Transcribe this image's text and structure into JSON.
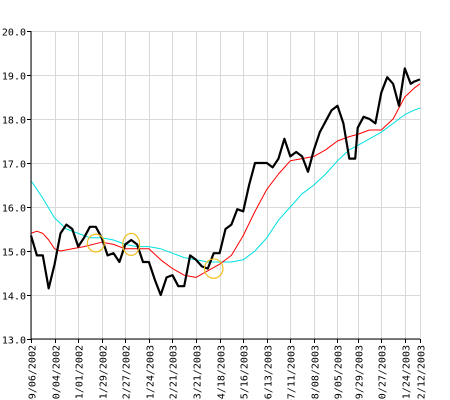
{
  "chart_data": {
    "type": "line",
    "title": "",
    "xlabel": "",
    "ylabel": "",
    "ylim": [
      13.0,
      20.0
    ],
    "grid": true,
    "y_ticks": [
      "13.0",
      "14.0",
      "15.0",
      "16.0",
      "17.0",
      "18.0",
      "19.0",
      "20.0"
    ],
    "x_ticks": [
      "09/06/2002",
      "10/04/2002",
      "11/01/2002",
      "11/29/2002",
      "12/27/2002",
      "01/24/2003",
      "02/21/2003",
      "03/21/2003",
      "04/18/2003",
      "05/16/2003",
      "06/13/2003",
      "07/11/2003",
      "08/08/2003",
      "09/05/2003",
      "09/29/2003",
      "10/27/2003",
      "11/24/2003",
      "12/12/2003"
    ],
    "series": [
      {
        "color": "#000000",
        "x": [
          "2002-09-06",
          "2002-09-13",
          "2002-09-20",
          "2002-09-27",
          "2002-10-04",
          "2002-10-11",
          "2002-10-18",
          "2002-10-25",
          "2002-11-01",
          "2002-11-08",
          "2002-11-15",
          "2002-11-22",
          "2002-11-29",
          "2002-12-06",
          "2002-12-13",
          "2002-12-20",
          "2002-12-27",
          "2003-01-03",
          "2003-01-10",
          "2003-01-17",
          "2003-01-24",
          "2003-01-31",
          "2003-02-07",
          "2003-02-14",
          "2003-02-21",
          "2003-02-28",
          "2003-03-07",
          "2003-03-14",
          "2003-03-21",
          "2003-03-28",
          "2003-04-04",
          "2003-04-11",
          "2003-04-18",
          "2003-04-25",
          "2003-05-02",
          "2003-05-09",
          "2003-05-16",
          "2003-05-23",
          "2003-05-30",
          "2003-06-06",
          "2003-06-13",
          "2003-06-20",
          "2003-06-27",
          "2003-07-04",
          "2003-07-11",
          "2003-07-18",
          "2003-07-25",
          "2003-08-01",
          "2003-08-08",
          "2003-08-15",
          "2003-08-22",
          "2003-08-29",
          "2003-09-05",
          "2003-09-12",
          "2003-09-19",
          "2003-09-26",
          "2003-09-29",
          "2003-10-06",
          "2003-10-13",
          "2003-10-20",
          "2003-10-27",
          "2003-11-03",
          "2003-11-10",
          "2003-11-17",
          "2003-11-24",
          "2003-12-01",
          "2003-12-05",
          "2003-12-12"
        ],
        "y": [
          15.35,
          14.9,
          14.9,
          14.15,
          14.7,
          15.4,
          15.6,
          15.5,
          15.1,
          15.3,
          15.55,
          15.55,
          15.3,
          14.9,
          14.95,
          14.75,
          15.15,
          15.25,
          15.15,
          14.75,
          14.75,
          14.35,
          14.0,
          14.4,
          14.45,
          14.2,
          14.2,
          14.9,
          14.8,
          14.65,
          14.6,
          14.95,
          14.95,
          15.5,
          15.6,
          15.95,
          15.9,
          16.5,
          17.0,
          17.0,
          17.0,
          16.9,
          17.1,
          17.55,
          17.15,
          17.25,
          17.15,
          16.8,
          17.3,
          17.7,
          17.95,
          18.2,
          18.3,
          17.9,
          17.1,
          17.1,
          17.8,
          18.05,
          18.0,
          17.9,
          18.6,
          18.95,
          18.8,
          18.3,
          19.15,
          18.8,
          18.85,
          18.9
        ]
      },
      {
        "color": "#ff0000",
        "x": [
          "2002-09-06",
          "2002-09-13",
          "2002-09-20",
          "2002-09-27",
          "2002-10-04",
          "2002-10-11",
          "2002-10-25",
          "2002-11-08",
          "2002-11-29",
          "2002-12-13",
          "2002-12-27",
          "2003-01-10",
          "2003-01-24",
          "2003-02-07",
          "2003-02-21",
          "2003-03-07",
          "2003-03-21",
          "2003-04-04",
          "2003-04-18",
          "2003-05-02",
          "2003-05-16",
          "2003-05-30",
          "2003-06-13",
          "2003-06-27",
          "2003-07-11",
          "2003-07-25",
          "2003-08-08",
          "2003-08-22",
          "2003-09-05",
          "2003-09-19",
          "2003-09-29",
          "2003-10-13",
          "2003-10-27",
          "2003-11-10",
          "2003-11-24",
          "2003-12-05",
          "2003-12-12"
        ],
        "y": [
          15.4,
          15.45,
          15.4,
          15.25,
          15.05,
          15.0,
          15.05,
          15.1,
          15.2,
          15.15,
          15.05,
          15.05,
          15.05,
          14.8,
          14.6,
          14.45,
          14.4,
          14.55,
          14.7,
          14.9,
          15.35,
          15.9,
          16.4,
          16.75,
          17.05,
          17.1,
          17.15,
          17.3,
          17.5,
          17.6,
          17.65,
          17.75,
          17.75,
          18.0,
          18.5,
          18.7,
          18.8
        ]
      },
      {
        "color": "#00e0e0",
        "x": [
          "2002-09-06",
          "2002-09-20",
          "2002-10-04",
          "2002-10-18",
          "2002-11-01",
          "2002-11-15",
          "2002-11-29",
          "2002-12-13",
          "2002-12-27",
          "2003-01-10",
          "2003-01-24",
          "2003-02-07",
          "2003-02-21",
          "2003-03-07",
          "2003-03-21",
          "2003-04-04",
          "2003-04-18",
          "2003-05-02",
          "2003-05-16",
          "2003-05-30",
          "2003-06-13",
          "2003-06-27",
          "2003-07-11",
          "2003-07-25",
          "2003-08-08",
          "2003-08-22",
          "2003-09-05",
          "2003-09-19",
          "2003-09-29",
          "2003-10-13",
          "2003-10-27",
          "2003-11-10",
          "2003-11-24",
          "2003-12-05",
          "2003-12-12"
        ],
        "y": [
          16.6,
          16.2,
          15.75,
          15.5,
          15.4,
          15.3,
          15.3,
          15.25,
          15.15,
          15.1,
          15.1,
          15.05,
          14.95,
          14.85,
          14.8,
          14.75,
          14.75,
          14.75,
          14.8,
          15.0,
          15.3,
          15.7,
          16.0,
          16.3,
          16.5,
          16.75,
          17.05,
          17.3,
          17.4,
          17.55,
          17.7,
          17.9,
          18.1,
          18.2,
          18.25
        ]
      }
    ],
    "annotations": [
      {
        "type": "ellipse",
        "color": "#f0c020",
        "x": "2002-11-22",
        "y": 15.18,
        "rx_days": 10,
        "ry": 0.2
      },
      {
        "type": "ellipse",
        "color": "#f0c020",
        "x": "2003-01-03",
        "y": 15.15,
        "rx_days": 10,
        "ry": 0.25
      },
      {
        "type": "ellipse",
        "color": "#f0c020",
        "x": "2003-04-11",
        "y": 14.6,
        "rx_days": 11,
        "ry": 0.22
      }
    ]
  }
}
